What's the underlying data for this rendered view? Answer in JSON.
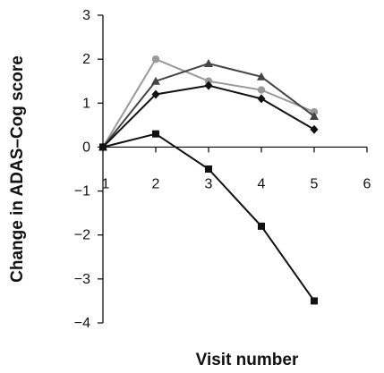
{
  "chart_data": {
    "type": "line",
    "title": "",
    "xlabel": "Visit number",
    "ylabel": "Change in ADAS–Cog score",
    "xlim": [
      1,
      6
    ],
    "ylim": [
      -4,
      3
    ],
    "xticks": [
      1,
      2,
      3,
      4,
      5,
      6
    ],
    "xtick_labels": [
      "1",
      "2",
      "3",
      "4",
      "5",
      "6"
    ],
    "yticks": [
      -4,
      -3,
      -2,
      -1,
      0,
      1,
      2,
      3
    ],
    "ytick_labels": [
      "−4",
      "−3",
      "−2",
      "−1",
      "0",
      "1",
      "2",
      "3"
    ],
    "grid": false,
    "legend": "none",
    "x": [
      1,
      2,
      3,
      4,
      5
    ],
    "series": [
      {
        "marker": "circle",
        "color": "#999999",
        "values": [
          0,
          2.0,
          1.5,
          1.3,
          0.8
        ]
      },
      {
        "marker": "triangle",
        "color": "#444444",
        "values": [
          0,
          1.5,
          1.9,
          1.6,
          0.7
        ]
      },
      {
        "marker": "diamond",
        "color": "#111111",
        "values": [
          0,
          1.2,
          1.4,
          1.1,
          0.4
        ]
      },
      {
        "marker": "square",
        "color": "#111111",
        "values": [
          0,
          0.3,
          -0.5,
          -1.8,
          -3.5
        ]
      }
    ]
  }
}
